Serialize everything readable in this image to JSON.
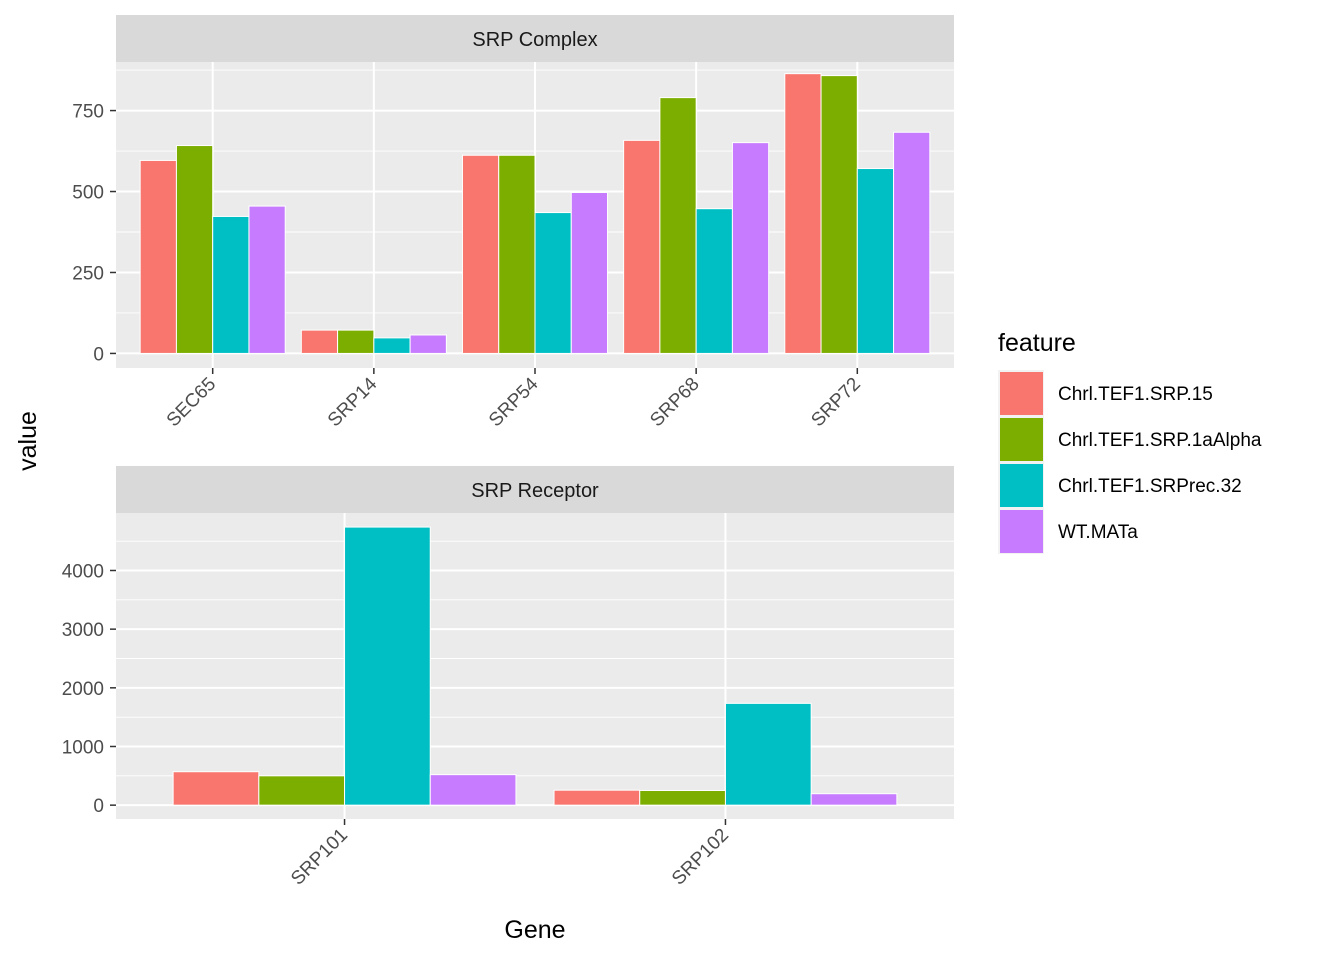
{
  "chart_data": {
    "type": "bar",
    "xlabel": "Gene",
    "ylabel": "value",
    "legend": {
      "title": "feature",
      "position": "right",
      "entries": [
        {
          "name": "Chrl.TEF1.SRP.15",
          "color": "#F8766D"
        },
        {
          "name": "Chrl.TEF1.SRP.1aAlpha",
          "color": "#7CAE00"
        },
        {
          "name": "Chrl.TEF1.SRPrec.32",
          "color": "#00BFC4"
        },
        {
          "name": "WT.MATa",
          "color": "#C77CFF"
        }
      ]
    },
    "panels": [
      {
        "title": "SRP Complex",
        "categories": [
          "SEC65",
          "SRP14",
          "SRP54",
          "SRP68",
          "SRP72"
        ],
        "ylim": [
          -45,
          900
        ],
        "yticks": [
          0,
          250,
          500,
          750
        ],
        "ytick_labels": [
          "0",
          "250",
          "500",
          "750"
        ],
        "series": [
          {
            "name": "Chrl.TEF1.SRP.15",
            "values": [
              596,
              72,
              612,
              658,
              864
            ]
          },
          {
            "name": "Chrl.TEF1.SRP.1aAlpha",
            "values": [
              642,
              72,
              612,
              790,
              858
            ]
          },
          {
            "name": "Chrl.TEF1.SRPrec.32",
            "values": [
              423,
              48,
              435,
              447,
              571
            ]
          },
          {
            "name": "WT.MATa",
            "values": [
              455,
              57,
              497,
              651,
              683
            ]
          }
        ]
      },
      {
        "title": "SRP Receptor",
        "categories": [
          "SRP101",
          "SRP102"
        ],
        "ylim": [
          -236,
          4980
        ],
        "yticks": [
          0,
          1000,
          2000,
          3000,
          4000
        ],
        "ytick_labels": [
          "0",
          "1000",
          "2000",
          "3000",
          "4000"
        ],
        "series": [
          {
            "name": "Chrl.TEF1.SRP.15",
            "values": [
              570,
              255
            ]
          },
          {
            "name": "Chrl.TEF1.SRP.1aAlpha",
            "values": [
              500,
              250
            ]
          },
          {
            "name": "Chrl.TEF1.SRPrec.32",
            "values": [
              4740,
              1735
            ]
          },
          {
            "name": "WT.MATa",
            "values": [
              520,
              195
            ]
          }
        ]
      }
    ],
    "grid": true
  }
}
